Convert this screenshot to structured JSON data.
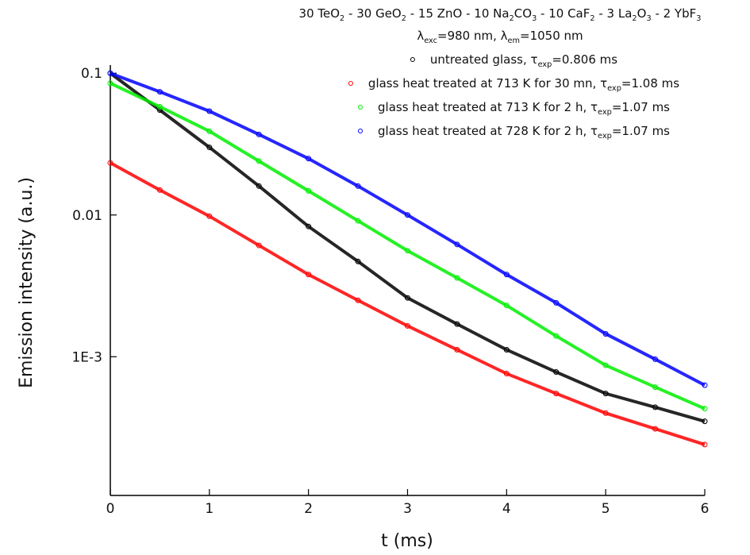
{
  "chart_data": {
    "type": "scatter",
    "title": [
      "30 TeO",
      "2",
      " - 30 GeO",
      "2",
      " - 15 ZnO - 10 Na",
      "2",
      "CO",
      "3",
      " - 10 CaF",
      "2",
      " - 3 La",
      "2",
      "O",
      "3",
      " - 2 YbF",
      "3"
    ],
    "subtitle": [
      "λ",
      "exc",
      "=980 nm, λ",
      "em",
      "=1050 nm"
    ],
    "x_label": "t (ms)",
    "y_label": "Emission intensity (a.u.)",
    "x": [
      0,
      0.5,
      1,
      1.5,
      2,
      2.5,
      3,
      3.5,
      4,
      4.5,
      5,
      5.5,
      6
    ],
    "series": [
      {
        "name": [
          "untreated glass, τ",
          "exp",
          "=0.806 ms"
        ],
        "color": "#000000",
        "values": [
          0.1,
          0.055,
          0.03,
          0.016,
          0.0083,
          0.0047,
          0.0026,
          0.0017,
          0.00112,
          0.00078,
          0.00055,
          0.00044,
          0.00035
        ]
      },
      {
        "name": [
          "glass heat treated at 713 K for 30 mn, τ",
          "exp",
          "=1.08 ms"
        ],
        "color": "#ff0000",
        "values": [
          0.0233,
          0.015,
          0.0098,
          0.0061,
          0.0038,
          0.0025,
          0.00165,
          0.00112,
          0.00076,
          0.00055,
          0.0004,
          0.00031,
          0.00024
        ]
      },
      {
        "name": [
          "glass heat treated at 713 K for 2 h, τ",
          "exp",
          "=1.07 ms"
        ],
        "color": "#00ee00",
        "values": [
          0.085,
          0.058,
          0.039,
          0.024,
          0.0148,
          0.0091,
          0.0056,
          0.0036,
          0.0023,
          0.0014,
          0.00087,
          0.00061,
          0.00043
        ]
      },
      {
        "name": [
          "glass heat treated at 728 K for 2 h, τ",
          "exp",
          "=1.07 ms"
        ],
        "color": "#0000ff",
        "values": [
          0.1,
          0.074,
          0.054,
          0.037,
          0.025,
          0.016,
          0.01,
          0.0062,
          0.0038,
          0.0024,
          0.00145,
          0.00096,
          0.00063
        ]
      }
    ],
    "xlim": [
      0,
      6
    ],
    "xticks": [
      0,
      1,
      2,
      3,
      4,
      5,
      6
    ],
    "ylim": [
      0.000105,
      0.107
    ],
    "yticks": [
      0.1,
      0.01,
      {
        "value": 0.001,
        "label": "1E-3"
      }
    ],
    "ylog": true
  }
}
